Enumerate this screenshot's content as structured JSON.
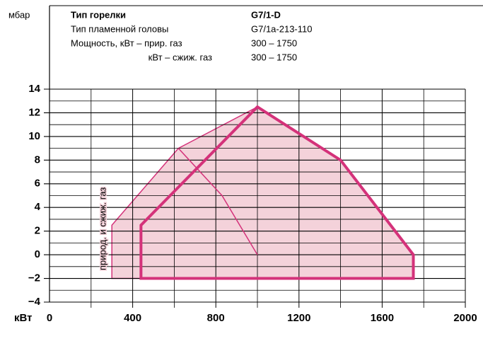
{
  "header": {
    "unit": "мбар",
    "rows": [
      [
        "Тип горелки",
        "G7/1-D"
      ],
      [
        "Тип пламенной головы",
        "G7/1a-213-110"
      ],
      [
        "Мощность, кВт – прир. газ",
        "300 – 1750"
      ],
      [
        "кВт – сжиж. газ",
        "300 – 1750"
      ]
    ]
  },
  "chart_data": {
    "type": "polygon",
    "x_label": "кВт",
    "annotation": "природ. и сжиж. газ",
    "xlim": [
      0,
      2000
    ],
    "xticks": [
      0,
      400,
      800,
      1200,
      1600,
      2000
    ],
    "xticks_minor": [
      200,
      600,
      1000,
      1400,
      1800
    ],
    "ylim": [
      -4,
      14
    ],
    "yticks": [
      {
        "value": -4,
        "label": "−4"
      },
      {
        "value": -2,
        "label": "−2"
      },
      0,
      2,
      4,
      6,
      8,
      10,
      12,
      14
    ],
    "yticks_minor": [
      -3,
      -1,
      1,
      3,
      5,
      7,
      9,
      11,
      13
    ],
    "grid": true,
    "series": [
      {
        "style": "area",
        "color": "#d4327a",
        "fill": "#f4d2da",
        "x": [
          300,
          300,
          620,
          1000,
          1400,
          1750,
          1750
        ],
        "values": [
          -2,
          2.5,
          9,
          12.5,
          8,
          0,
          -2
        ]
      },
      {
        "style": "thick",
        "color": "#d4327a",
        "x": [
          440,
          440,
          1000,
          1400,
          1750,
          1750
        ],
        "values": [
          -2,
          2.5,
          12.5,
          8,
          0,
          -2
        ]
      },
      {
        "style": "thin",
        "color": "#d4327a",
        "x": [
          620,
          830,
          1000
        ],
        "values": [
          9,
          5,
          0
        ]
      }
    ]
  }
}
